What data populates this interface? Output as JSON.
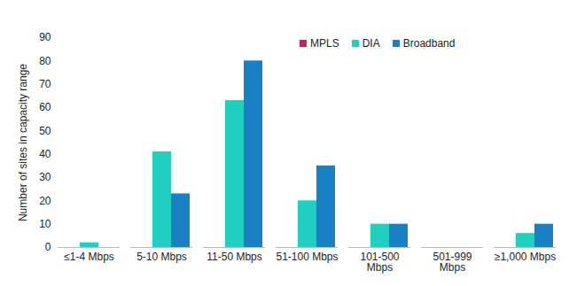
{
  "chart_data": {
    "type": "bar",
    "categories": [
      "≤1-4 Mbps",
      "5-10 Mbps",
      "11-50 Mbps",
      "51-100 Mbps",
      "101-500 Mbps",
      "501-999 Mbps",
      "≥1,000 Mbps"
    ],
    "series": [
      {
        "name": "MPLS",
        "color": "#c0245c",
        "values": [
          0,
          0,
          0,
          0,
          0,
          0,
          0
        ]
      },
      {
        "name": "DIA",
        "color": "#20cfc0",
        "values": [
          2,
          41,
          63,
          20,
          10,
          0,
          6
        ]
      },
      {
        "name": "Broadband",
        "color": "#1a80c4",
        "values": [
          0,
          23,
          80,
          35,
          10,
          0,
          10
        ]
      }
    ],
    "y_label": "Number of sites in capacity range",
    "ylim": [
      0,
      90
    ],
    "yticks": [
      0,
      10,
      20,
      30,
      40,
      50,
      60,
      70,
      80,
      90
    ],
    "grid": false,
    "legend": "top"
  }
}
